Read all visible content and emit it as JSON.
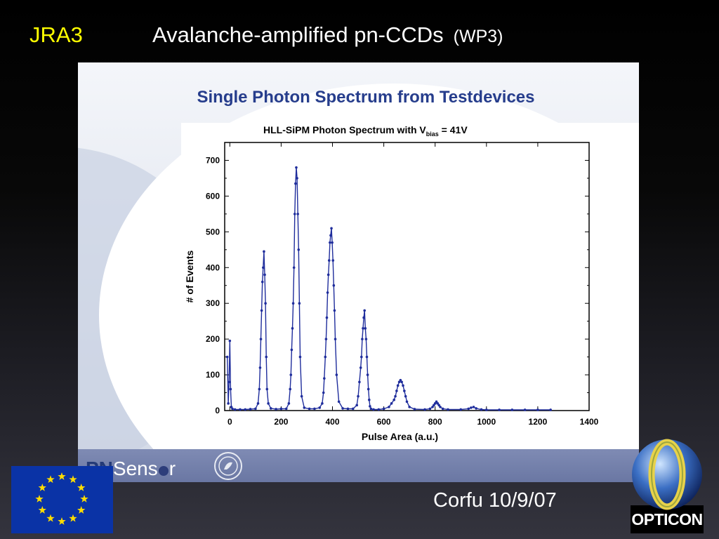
{
  "slide": {
    "tag": "JRA3",
    "title": "Avalanche-amplified pn-CCDs",
    "title_suffix": "(WP3)",
    "footer_text": "Corfu 10/9/07",
    "opticon_label": "OPTICON",
    "pnsensor_prefix": "PN",
    "pnsensor_rest": "Sens",
    "pnsensor_end": "r"
  },
  "panel": {
    "heading": "Single Photon Spectrum from Testdevices"
  },
  "colors": {
    "tag": "#ffff00",
    "heading": "#263d8c",
    "series": "#1f2d9c",
    "eu_blue": "#0a33a6",
    "eu_star": "#ffdd00"
  },
  "chart_data": {
    "type": "line",
    "title": "HLL-SiPM Photon Spectrum with V",
    "title_sub": "bias",
    "title_end": " = 41V",
    "xlabel": "Pulse Area (a.u.)",
    "ylabel": "# of Events",
    "xlim": [
      -20,
      1400
    ],
    "ylim": [
      0,
      750
    ],
    "xticks": [
      0,
      200,
      400,
      600,
      800,
      1000,
      1200,
      1400
    ],
    "yticks": [
      0,
      100,
      200,
      300,
      400,
      500,
      600,
      700
    ],
    "grid": false,
    "markers": true,
    "series": [
      {
        "name": "",
        "x": [
          -10,
          -6,
          -3,
          0,
          3,
          6,
          10,
          20,
          40,
          60,
          80,
          100,
          110,
          115,
          118,
          121,
          124,
          127,
          130,
          133,
          136,
          139,
          142,
          145,
          150,
          160,
          180,
          200,
          220,
          230,
          235,
          238,
          241,
          244,
          247,
          250,
          253,
          256,
          259,
          262,
          265,
          268,
          271,
          274,
          280,
          290,
          310,
          330,
          350,
          360,
          365,
          368,
          372,
          375,
          378,
          381,
          384,
          387,
          390,
          393,
          396,
          399,
          402,
          405,
          408,
          411,
          416,
          425,
          440,
          460,
          480,
          495,
          500,
          505,
          510,
          513,
          516,
          519,
          522,
          525,
          528,
          531,
          534,
          537,
          540,
          543,
          546,
          550,
          560,
          580,
          600,
          620,
          630,
          640,
          645,
          650,
          655,
          660,
          665,
          670,
          675,
          680,
          685,
          690,
          700,
          720,
          760,
          780,
          790,
          795,
          800,
          805,
          810,
          815,
          820,
          830,
          850,
          900,
          930,
          940,
          950,
          960,
          980,
          1000,
          1050,
          1100,
          1150,
          1200,
          1250
        ],
        "y": [
          150,
          20,
          80,
          195,
          60,
          10,
          5,
          3,
          3,
          3,
          4,
          5,
          20,
          60,
          120,
          200,
          280,
          360,
          400,
          445,
          380,
          300,
          150,
          60,
          20,
          6,
          4,
          5,
          5,
          20,
          60,
          100,
          170,
          230,
          300,
          400,
          550,
          635,
          680,
          650,
          550,
          450,
          300,
          150,
          40,
          8,
          5,
          5,
          8,
          20,
          50,
          90,
          150,
          200,
          260,
          330,
          380,
          420,
          470,
          490,
          510,
          470,
          420,
          350,
          280,
          200,
          100,
          25,
          6,
          5,
          5,
          15,
          40,
          80,
          120,
          150,
          200,
          230,
          260,
          280,
          230,
          200,
          150,
          100,
          60,
          30,
          12,
          5,
          3,
          3,
          5,
          10,
          20,
          30,
          40,
          55,
          70,
          80,
          85,
          80,
          70,
          55,
          40,
          25,
          10,
          4,
          3,
          5,
          10,
          15,
          20,
          25,
          20,
          15,
          10,
          5,
          3,
          3,
          5,
          8,
          10,
          6,
          3,
          2,
          2,
          2,
          2,
          2,
          2
        ]
      }
    ]
  }
}
